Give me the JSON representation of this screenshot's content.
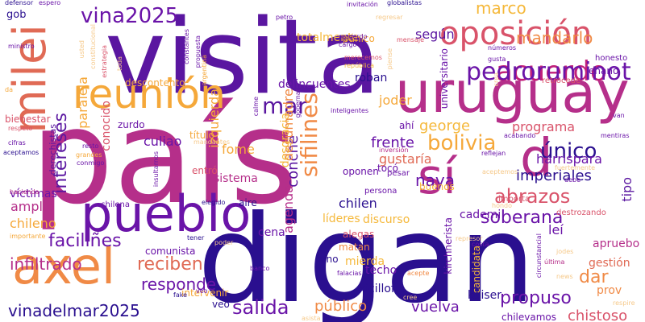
{
  "palette": {
    "deep_indigo": "#2a0f8f",
    "purple": "#6a14a8",
    "magenta": "#b52f8a",
    "rose": "#d9536a",
    "orange": "#f08a46",
    "gold": "#f5b83a",
    "pale": "#f6c98a"
  },
  "words": [
    {
      "text": "país",
      "color": "#b52f8a",
      "vertical": false
    },
    {
      "text": "digan",
      "color": "#2a0f8f",
      "vertical": false
    },
    {
      "text": "visita",
      "color": "#5a16a0",
      "vertical": false
    },
    {
      "text": "uruguay",
      "color": "#b52f8a",
      "vertical": false
    },
    {
      "text": "pueblo",
      "color": "#6a14a8",
      "vertical": false
    },
    {
      "text": "axel",
      "color": "#f08a46",
      "vertical": false
    },
    {
      "text": "reunión",
      "color": "#f5a83a",
      "vertical": false
    },
    {
      "text": "oposición",
      "color": "#d9536a",
      "vertical": false
    },
    {
      "text": "milei",
      "color": "#e06a55",
      "vertical": true
    },
    {
      "text": "sí",
      "color": "#b52f8a",
      "vertical": false
    },
    {
      "text": "d",
      "color": "#b52f8a",
      "vertical": false
    },
    {
      "text": "acuerdo",
      "color": "#c0207a",
      "vertical": false
    },
    {
      "text": "pedroruminot",
      "color": "#6a14a8",
      "vertical": false
    },
    {
      "text": "vina2025",
      "color": "#6a14a8",
      "vertical": false
    },
    {
      "text": "mar",
      "color": "#5a16a0",
      "vertical": false
    },
    {
      "text": "marco",
      "color": "#f5b83a",
      "vertical": false
    },
    {
      "text": "intereses",
      "color": "#5a16a0",
      "vertical": true
    },
    {
      "text": "sifilines",
      "color": "#f08a46",
      "vertical": true
    },
    {
      "text": "mandarlo",
      "color": "#f08a46",
      "vertical": false
    },
    {
      "text": "según",
      "color": "#5a16a0",
      "vertical": false
    },
    {
      "text": "totalmente",
      "color": "#f5b83a",
      "vertical": false
    },
    {
      "text": "gob",
      "color": "#2a0f8f",
      "vertical": false
    },
    {
      "text": "paralela",
      "color": "#f5a83a",
      "vertical": true
    },
    {
      "text": "izquierda",
      "color": "#f5a83a",
      "vertical": true
    },
    {
      "text": "conocido",
      "color": "#d9536a",
      "vertical": true
    },
    {
      "text": "bolivia",
      "color": "#f5a83a",
      "vertical": false
    },
    {
      "text": "único",
      "color": "#2a0f8f",
      "vertical": false
    },
    {
      "text": "programa",
      "color": "#d9536a",
      "vertical": false
    },
    {
      "text": "george",
      "color": "#f5b83a",
      "vertical": false
    },
    {
      "text": "frente",
      "color": "#6a14a8",
      "vertical": false
    },
    {
      "text": "naya",
      "color": "#6a14a8",
      "vertical": false
    },
    {
      "text": "abrazos",
      "color": "#d9536a",
      "vertical": false
    },
    {
      "text": "imperiales",
      "color": "#2a0f8f",
      "vertical": false
    },
    {
      "text": "harrisparа",
      "color": "#6a14a8",
      "vertical": false
    },
    {
      "text": "gustaría",
      "color": "#e06a55",
      "vertical": false
    },
    {
      "text": "soberana",
      "color": "#6a14a8",
      "vertical": false
    },
    {
      "text": "faciliñes",
      "color": "#6a14a8",
      "vertical": false
    },
    {
      "text": "infiltrado",
      "color": "#b52f8a",
      "vertical": false
    },
    {
      "text": "reciben",
      "color": "#e06a55",
      "vertical": false
    },
    {
      "text": "responde",
      "color": "#6a14a8",
      "vertical": false
    },
    {
      "text": "salida",
      "color": "#6a14a8",
      "vertical": false
    },
    {
      "text": "vinadelmar2025",
      "color": "#2a0f8f",
      "vertical": false
    },
    {
      "text": "propuso",
      "color": "#6a14a8",
      "vertical": false
    },
    {
      "text": "dar",
      "color": "#f08a46",
      "vertical": false
    },
    {
      "text": "chistoso",
      "color": "#d9536a",
      "vertical": false
    },
    {
      "text": "vuelva",
      "color": "#6a14a8",
      "vertical": false
    },
    {
      "text": "público",
      "color": "#f08a46",
      "vertical": false
    },
    {
      "text": "chilen",
      "color": "#2a0f8f",
      "vertical": false
    },
    {
      "text": "líderes",
      "color": "#f5b83a",
      "vertical": false
    },
    {
      "text": "discurso",
      "color": "#f5b83a",
      "vertical": false
    },
    {
      "text": "cena",
      "color": "#6a14a8",
      "vertical": false
    },
    {
      "text": "amplio",
      "color": "#b52f8a",
      "vertical": false
    },
    {
      "text": "chileno",
      "color": "#f5a83a",
      "vertical": false
    },
    {
      "text": "cademi",
      "color": "#6a14a8",
      "vertical": false
    },
    {
      "text": "leí",
      "color": "#6a14a8",
      "vertical": false
    },
    {
      "text": "culiao",
      "color": "#6a14a8",
      "vertical": false
    },
    {
      "text": "fome",
      "color": "#f5a83a",
      "vertical": false
    },
    {
      "text": "sistema",
      "color": "#b52f8a",
      "vertical": false
    },
    {
      "text": "conche",
      "color": "#5a16a0",
      "vertical": true
    },
    {
      "text": "desumadre",
      "color": "#f08a46",
      "vertical": true
    },
    {
      "text": "joder",
      "color": "#f5a83a",
      "vertical": false
    },
    {
      "text": "delincuentes",
      "color": "#6a14a8",
      "vertical": false
    },
    {
      "text": "agenda",
      "color": "#b52f8a",
      "vertical": true
    },
    {
      "text": "universitario",
      "color": "#6a14a8",
      "vertical": true
    },
    {
      "text": "kirchnerista",
      "color": "#6a14a8",
      "vertical": true
    },
    {
      "text": "candidata",
      "color": "#f5b83a",
      "vertical": true
    },
    {
      "text": "kicillof",
      "color": "#2a0f8f",
      "vertical": false
    },
    {
      "text": "kaiser",
      "color": "#2a0f8f",
      "vertical": false
    },
    {
      "text": "mierda",
      "color": "#f5b83a",
      "vertical": false
    },
    {
      "text": "techo",
      "color": "#6a14a8",
      "vertical": false
    },
    {
      "text": "matan",
      "color": "#f08a46",
      "vertical": false
    },
    {
      "text": "alegas",
      "color": "#d9536a",
      "vertical": false
    },
    {
      "text": "gestión",
      "color": "#e06a55",
      "vertical": false
    },
    {
      "text": "apruebo",
      "color": "#b52f8a",
      "vertical": false
    },
    {
      "text": "tipo",
      "color": "#5a16a0",
      "vertical": true
    },
    {
      "text": "prov",
      "color": "#f08a46",
      "vertical": false
    },
    {
      "text": "chilevamos",
      "color": "#6a14a8",
      "vertical": false
    },
    {
      "text": "víctimas",
      "color": "#6a14a8",
      "vertical": false
    },
    {
      "text": "derechistas",
      "color": "#5a16a0",
      "vertical": true
    },
    {
      "text": "comunista",
      "color": "#6a14a8",
      "vertical": false
    },
    {
      "text": "intervenir",
      "color": "#f5a83a",
      "vertical": false
    },
    {
      "text": "título",
      "color": "#f5a83a",
      "vertical": false
    },
    {
      "text": "zurdo",
      "color": "#6a14a8",
      "vertical": false
    },
    {
      "text": "ahí",
      "color": "#6a14a8",
      "vertical": false
    },
    {
      "text": "descontento",
      "color": "#f5a83a",
      "vertical": false
    },
    {
      "text": "bienestar",
      "color": "#d9536a",
      "vertical": false
    },
    {
      "text": "desgracia",
      "color": "#f5b83a",
      "vertical": true
    },
    {
      "text": "entró",
      "color": "#d9536a",
      "vertical": false
    },
    {
      "text": "aire",
      "color": "#2a0f8f",
      "vertical": false
    },
    {
      "text": "roban",
      "color": "#2a0f8f",
      "vertical": false
    },
    {
      "text": "pánico",
      "color": "#f5a83a",
      "vertical": false
    },
    {
      "text": "buenos",
      "color": "#f5b83a",
      "vertical": false
    },
    {
      "text": "oponen",
      "color": "#6a14a8",
      "vertical": false
    },
    {
      "text": "tocó",
      "color": "#6a14a8",
      "vertical": false
    },
    {
      "text": "persona",
      "color": "#6a14a8",
      "vertical": false
    },
    {
      "text": "pesar",
      "color": "#6a14a8",
      "vertical": false
    },
    {
      "text": "sino",
      "color": "#2a0f8f",
      "vertical": false
    },
    {
      "text": "veo",
      "color": "#2a0f8f",
      "vertical": false
    },
    {
      "text": "enano",
      "color": "#6a14a8",
      "vertical": false
    },
    {
      "text": "honesto",
      "color": "#6a14a8",
      "vertical": false
    },
    {
      "text": "retrocede",
      "color": "#d9536a",
      "vertical": false
    },
    {
      "text": "destrozando",
      "color": "#d9536a",
      "vertical": false
    },
    {
      "text": "acabando",
      "color": "#6a14a8",
      "vertical": false
    },
    {
      "text": "mentiras",
      "color": "#6a14a8",
      "vertical": false
    },
    {
      "text": "van",
      "color": "#6a14a8",
      "vertical": false
    },
    {
      "text": "reflejan",
      "color": "#6a14a8",
      "vertical": false
    },
    {
      "text": "inversión",
      "color": "#b52f8a",
      "vertical": false
    },
    {
      "text": "fuertemente",
      "color": "#f6c98a",
      "vertical": false
    },
    {
      "text": "aceptemos",
      "color": "#f6c98a",
      "vertical": false
    },
    {
      "text": "debe",
      "color": "#6a14a8",
      "vertical": false
    },
    {
      "text": "importa",
      "color": "#d9536a",
      "vertical": false
    },
    {
      "text": "hondo",
      "color": "#f6c98a",
      "vertical": false
    },
    {
      "text": "elegido",
      "color": "#2a0f8f",
      "vertical": false
    },
    {
      "text": "chilena",
      "color": "#6a14a8",
      "vertical": false
    },
    {
      "text": "hacienda",
      "color": "#b52f8a",
      "vertical": false
    },
    {
      "text": "importante",
      "color": "#f5a83a",
      "vertical": false
    },
    {
      "text": "fake",
      "color": "#2a0f8f",
      "vertical": false
    },
    {
      "text": "tener",
      "color": "#2a0f8f",
      "vertical": false
    },
    {
      "text": "poder",
      "color": "#f6c98a",
      "vertical": false
    },
    {
      "text": "banco",
      "color": "#6a14a8",
      "vertical": false
    },
    {
      "text": "falacias",
      "color": "#6a14a8",
      "vertical": false
    },
    {
      "text": "acepte",
      "color": "#f08a46",
      "vertical": false
    },
    {
      "text": "cree",
      "color": "#f6c98a",
      "vertical": false
    },
    {
      "text": "represor",
      "color": "#f6c98a",
      "vertical": false
    },
    {
      "text": "costa",
      "color": "#6a14a8",
      "vertical": false
    },
    {
      "text": "jodes",
      "color": "#f6c98a",
      "vertical": false
    },
    {
      "text": "última",
      "color": "#b52f8a",
      "vertical": false
    },
    {
      "text": "news",
      "color": "#f6c98a",
      "vertical": false
    },
    {
      "text": "respire",
      "color": "#f6c98a",
      "vertical": false
    },
    {
      "text": "asista",
      "color": "#f6c98a",
      "vertical": false
    },
    {
      "text": "circunstancial",
      "color": "#6a14a8",
      "vertical": true
    },
    {
      "text": "resto",
      "color": "#6a14a8",
      "vertical": false
    },
    {
      "text": "grandes",
      "color": "#f5a83a",
      "vertical": false
    },
    {
      "text": "conmigo",
      "color": "#6a14a8",
      "vertical": false
    },
    {
      "text": "insultarnos",
      "color": "#6a14a8",
      "vertical": true
    },
    {
      "text": "mandantes",
      "color": "#f6c98a",
      "vertical": false
    },
    {
      "text": "gobernar",
      "color": "#6a14a8",
      "vertical": true
    },
    {
      "text": "calme",
      "color": "#6a14a8",
      "vertical": true
    },
    {
      "text": "inteligentes",
      "color": "#6a14a8",
      "vertical": false
    },
    {
      "text": "respeto",
      "color": "#d9536a",
      "vertical": false
    },
    {
      "text": "aceptamos",
      "color": "#2a0f8f",
      "vertical": false
    },
    {
      "text": "cifras",
      "color": "#6a14a8",
      "vertical": false
    },
    {
      "text": "da",
      "color": "#f5a83a",
      "vertical": false
    },
    {
      "text": "ministro",
      "color": "#6a14a8",
      "vertical": false
    },
    {
      "text": "defensor",
      "color": "#2a0f8f",
      "vertical": false
    },
    {
      "text": "espero",
      "color": "#6a14a8",
      "vertical": false
    },
    {
      "text": "usted",
      "color": "#f6c98a",
      "vertical": true
    },
    {
      "text": "constitucional",
      "color": "#f6c98a",
      "vertical": true
    },
    {
      "text": "estrategia",
      "color": "#d9536a",
      "vertical": true
    },
    {
      "text": "constantes",
      "color": "#6a14a8",
      "vertical": true
    },
    {
      "text": "propuesta",
      "color": "#6a14a8",
      "vertical": true
    },
    {
      "text": "argentina",
      "color": "#f5a83a",
      "vertical": true
    },
    {
      "text": "toda",
      "color": "#f6c98a",
      "vertical": true
    },
    {
      "text": "petro",
      "color": "#6a14a8",
      "vertical": false
    },
    {
      "text": "invitación",
      "color": "#6a14a8",
      "vertical": false
    },
    {
      "text": "globalistas",
      "color": "#2a0f8f",
      "vertical": false
    },
    {
      "text": "regresar",
      "color": "#f6c98a",
      "vertical": false
    },
    {
      "text": "mensaje",
      "color": "#d9536a",
      "vertical": false
    },
    {
      "text": "merecemos",
      "color": "#d9536a",
      "vertical": false
    },
    {
      "text": "república",
      "color": "#f5b83a",
      "vertical": false
    },
    {
      "text": "recuerdo",
      "color": "#6a14a8",
      "vertical": false
    },
    {
      "text": "cargo",
      "color": "#6a14a8",
      "vertical": false
    },
    {
      "text": "x",
      "color": "#6a14a8",
      "vertical": false
    },
    {
      "text": "piense",
      "color": "#f6c98a",
      "vertical": true
    },
    {
      "text": "números",
      "color": "#6a14a8",
      "vertical": false
    },
    {
      "text": "gusta",
      "color": "#6a14a8",
      "vertical": false
    },
    {
      "text": "crea",
      "color": "#f6c98a",
      "vertical": true
    },
    {
      "text": "veo",
      "color": "#6a14a8",
      "vertical": false
    }
  ]
}
